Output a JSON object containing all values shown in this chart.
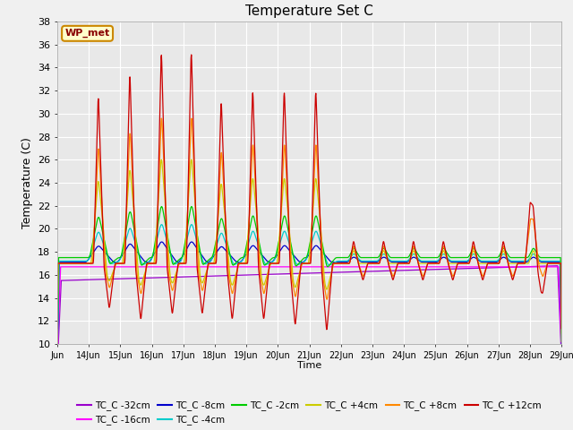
{
  "title": "Temperature Set C",
  "xlabel": "Time",
  "ylabel": "Temperature (C)",
  "ylim": [
    10,
    38
  ],
  "yticks": [
    10,
    12,
    14,
    16,
    18,
    20,
    22,
    24,
    26,
    28,
    30,
    32,
    34,
    36,
    38
  ],
  "plot_bg": "#e8e8e8",
  "series": [
    {
      "label": "TC_C -32cm",
      "color": "#9900cc"
    },
    {
      "label": "TC_C -16cm",
      "color": "#ff00ff"
    },
    {
      "label": "TC_C -8cm",
      "color": "#0000cc"
    },
    {
      "label": "TC_C -4cm",
      "color": "#00cccc"
    },
    {
      "label": "TC_C -2cm",
      "color": "#00cc00"
    },
    {
      "label": "TC_C +4cm",
      "color": "#cccc00"
    },
    {
      "label": "TC_C +8cm",
      "color": "#ff8800"
    },
    {
      "label": "TC_C +12cm",
      "color": "#cc0000"
    }
  ],
  "wp_met_label": "WP_met",
  "wp_met_facecolor": "#ffffcc",
  "wp_met_edgecolor": "#cc8800",
  "wp_met_textcolor": "#880000"
}
